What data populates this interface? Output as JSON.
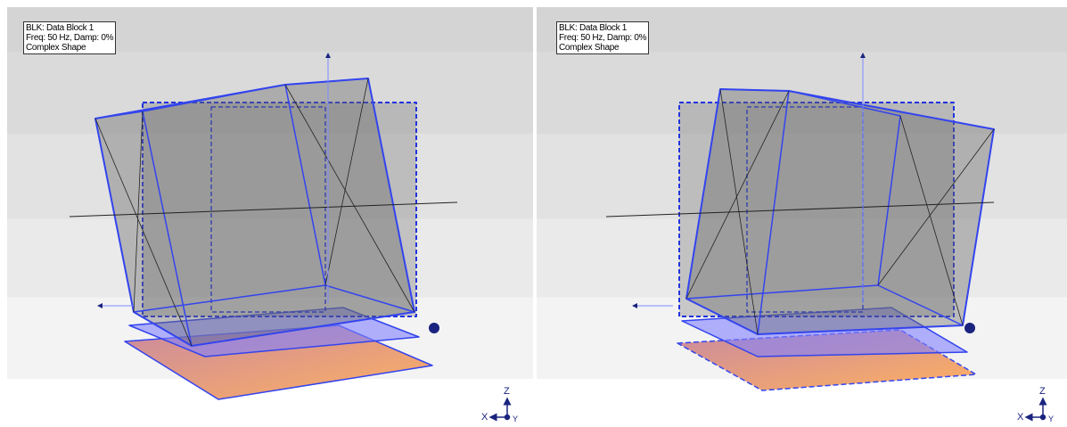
{
  "panels": [
    {
      "info": [
        "BLK: Data Block 1",
        "Freq: 50 Hz, Damp: 0%",
        "Complex Shape"
      ],
      "triad": {
        "z": "Z",
        "x": "X",
        "y": "Y"
      }
    },
    {
      "info": [
        "BLK: Data Block 1",
        "Freq: 50 Hz, Damp: 0%",
        "Complex Shape"
      ],
      "triad": {
        "z": "Z",
        "x": "X",
        "y": "Y"
      }
    }
  ]
}
